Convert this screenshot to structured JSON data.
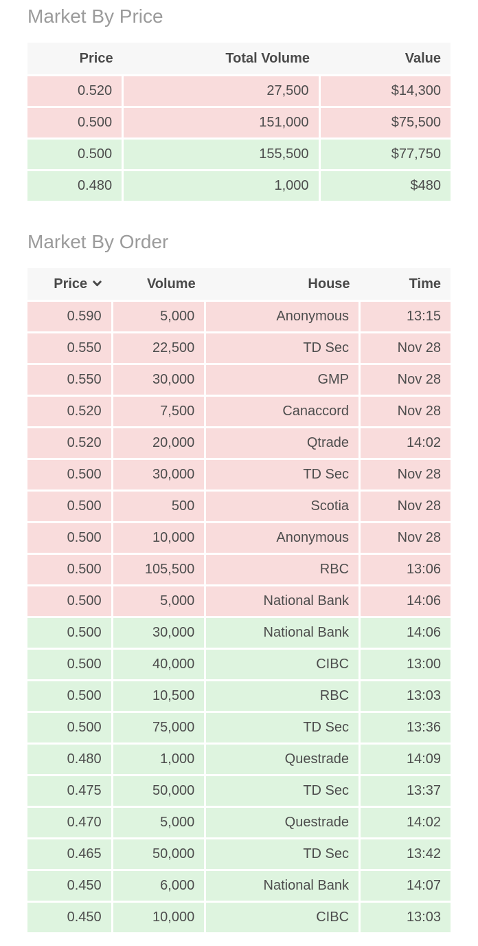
{
  "colors": {
    "sell_row": "#f9dcdc",
    "buy_row": "#def4df",
    "header_bg": "#f7f7f7",
    "header_text": "#4a4a4a",
    "cell_text": "#4d4d4d",
    "title_text": "#9b9b9b",
    "page_bg": "#ffffff"
  },
  "market_by_price": {
    "title": "Market By Price",
    "columns": [
      "Price",
      "Total Volume",
      "Value"
    ],
    "rows": [
      {
        "price": "0.520",
        "total_volume": "27,500",
        "value": "$14,300",
        "side": "sell"
      },
      {
        "price": "0.500",
        "total_volume": "151,000",
        "value": "$75,500",
        "side": "sell"
      },
      {
        "price": "0.500",
        "total_volume": "155,500",
        "value": "$77,750",
        "side": "buy"
      },
      {
        "price": "0.480",
        "total_volume": "1,000",
        "value": "$480",
        "side": "buy"
      }
    ]
  },
  "market_by_order": {
    "title": "Market By Order",
    "columns": [
      "Price",
      "Volume",
      "House",
      "Time"
    ],
    "sort": {
      "column": "Price",
      "direction": "descending"
    },
    "rows": [
      {
        "price": "0.590",
        "volume": "5,000",
        "house": "Anonymous",
        "time": "13:15",
        "side": "sell"
      },
      {
        "price": "0.550",
        "volume": "22,500",
        "house": "TD Sec",
        "time": "Nov 28",
        "side": "sell"
      },
      {
        "price": "0.550",
        "volume": "30,000",
        "house": "GMP",
        "time": "Nov 28",
        "side": "sell"
      },
      {
        "price": "0.520",
        "volume": "7,500",
        "house": "Canaccord",
        "time": "Nov 28",
        "side": "sell"
      },
      {
        "price": "0.520",
        "volume": "20,000",
        "house": "Qtrade",
        "time": "14:02",
        "side": "sell"
      },
      {
        "price": "0.500",
        "volume": "30,000",
        "house": "TD Sec",
        "time": "Nov 28",
        "side": "sell"
      },
      {
        "price": "0.500",
        "volume": "500",
        "house": "Scotia",
        "time": "Nov 28",
        "side": "sell"
      },
      {
        "price": "0.500",
        "volume": "10,000",
        "house": "Anonymous",
        "time": "Nov 28",
        "side": "sell"
      },
      {
        "price": "0.500",
        "volume": "105,500",
        "house": "RBC",
        "time": "13:06",
        "side": "sell"
      },
      {
        "price": "0.500",
        "volume": "5,000",
        "house": "National Bank",
        "time": "14:06",
        "side": "sell"
      },
      {
        "price": "0.500",
        "volume": "30,000",
        "house": "National Bank",
        "time": "14:06",
        "side": "buy"
      },
      {
        "price": "0.500",
        "volume": "40,000",
        "house": "CIBC",
        "time": "13:00",
        "side": "buy"
      },
      {
        "price": "0.500",
        "volume": "10,500",
        "house": "RBC",
        "time": "13:03",
        "side": "buy"
      },
      {
        "price": "0.500",
        "volume": "75,000",
        "house": "TD Sec",
        "time": "13:36",
        "side": "buy"
      },
      {
        "price": "0.480",
        "volume": "1,000",
        "house": "Questrade",
        "time": "14:09",
        "side": "buy"
      },
      {
        "price": "0.475",
        "volume": "50,000",
        "house": "TD Sec",
        "time": "13:37",
        "side": "buy"
      },
      {
        "price": "0.470",
        "volume": "5,000",
        "house": "Questrade",
        "time": "14:02",
        "side": "buy"
      },
      {
        "price": "0.465",
        "volume": "50,000",
        "house": "TD Sec",
        "time": "13:42",
        "side": "buy"
      },
      {
        "price": "0.450",
        "volume": "6,000",
        "house": "National Bank",
        "time": "14:07",
        "side": "buy"
      },
      {
        "price": "0.450",
        "volume": "10,000",
        "house": "CIBC",
        "time": "13:03",
        "side": "buy"
      }
    ]
  }
}
